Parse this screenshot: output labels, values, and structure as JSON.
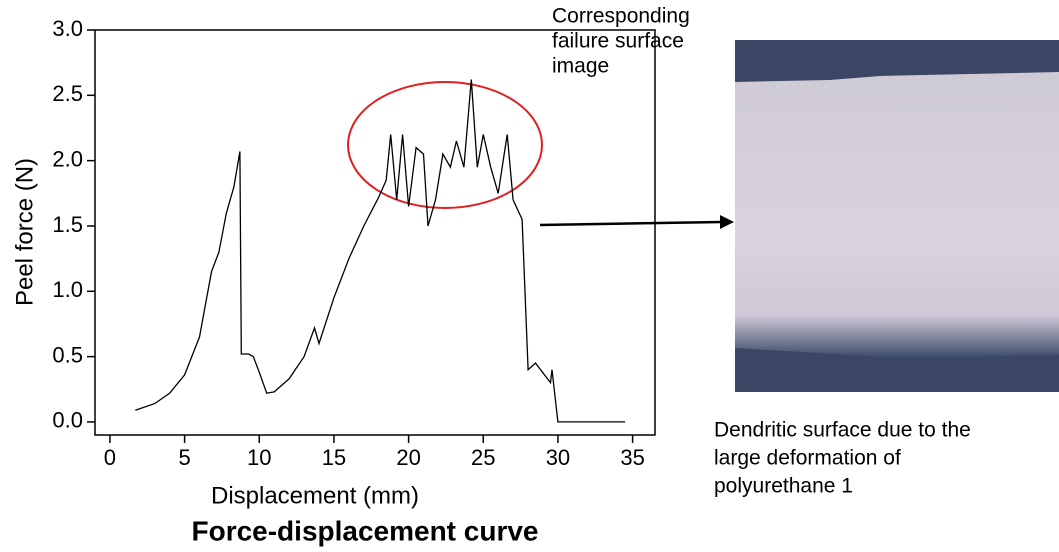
{
  "chart_data": {
    "type": "line",
    "title": "Force-displacement curve",
    "x_label": "Displacement (mm)",
    "y_label": "Peel force (N)",
    "annotation": [
      "Corresponding",
      "failure surface",
      "image"
    ],
    "image_caption": [
      "Dendritic surface due to the",
      "large deformation of",
      "polyurethane 1"
    ],
    "xlim": [
      -1,
      36.5
    ],
    "ylim": [
      -0.1,
      3.0
    ],
    "xticks": [
      0,
      5,
      10,
      15,
      20,
      25,
      30,
      35
    ],
    "yticks": [
      {
        "value": 0,
        "label": "0.0"
      },
      0.5,
      {
        "value": 1,
        "label": "1.0"
      },
      1.5,
      {
        "value": 2,
        "label": "2.0"
      },
      2.5,
      {
        "value": 3,
        "label": "3.0"
      }
    ],
    "color": "#000000",
    "x": [
      1.7,
      3,
      4,
      5,
      6,
      6.8,
      7.3,
      7.8,
      8.3,
      8.7,
      8.8,
      9.3,
      9.6,
      10,
      10.5,
      11,
      12,
      13,
      13.7,
      14,
      15,
      16,
      17,
      18,
      18.5,
      18.8,
      19.2,
      19.6,
      20,
      20.5,
      21,
      21.3,
      21.8,
      22.3,
      22.8,
      23.2,
      23.7,
      24.2,
      24.6,
      25,
      25.5,
      26,
      26.6,
      27,
      27.6,
      28,
      28.5,
      29.5,
      29.6,
      30,
      34.5
    ],
    "values": [
      0.09,
      0.14,
      0.22,
      0.36,
      0.65,
      1.15,
      1.3,
      1.6,
      1.8,
      2.07,
      0.52,
      0.52,
      0.5,
      0.38,
      0.22,
      0.23,
      0.33,
      0.5,
      0.72,
      0.6,
      0.95,
      1.25,
      1.5,
      1.72,
      1.85,
      2.2,
      1.7,
      2.2,
      1.65,
      2.1,
      2.05,
      1.5,
      1.7,
      2.05,
      1.95,
      2.15,
      1.95,
      2.62,
      1.95,
      2.2,
      1.95,
      1.75,
      2.2,
      1.7,
      1.55,
      0.4,
      0.45,
      0.3,
      0.4,
      0.0,
      0.0
    ]
  }
}
